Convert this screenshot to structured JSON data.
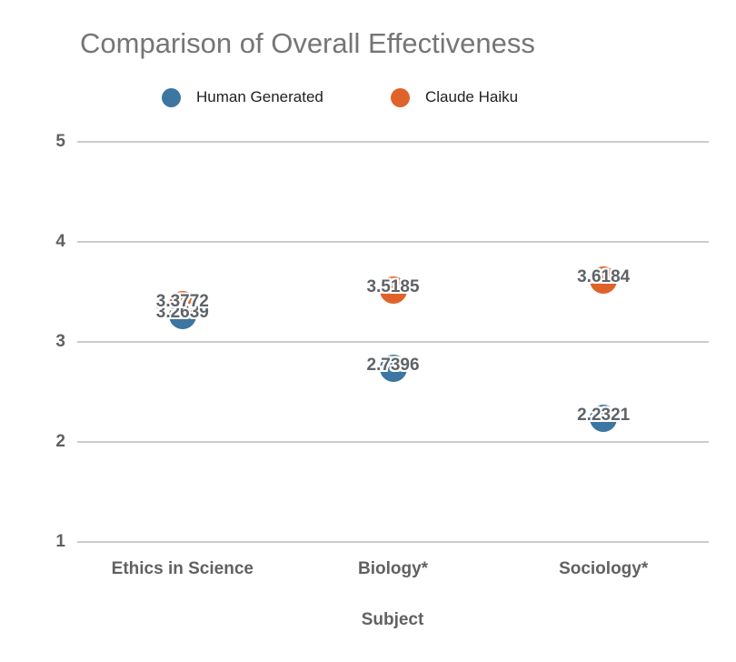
{
  "page": {
    "background": "#ffffff"
  },
  "chart_data": {
    "type": "scatter",
    "title": "Comparison of Overall Effectiveness",
    "xlabel": "Subject",
    "ylabel": "",
    "categories": [
      "Ethics in Science",
      "Biology*",
      "Sociology*"
    ],
    "series": [
      {
        "name": "Human Generated",
        "color": "#3C76A1",
        "values": [
          3.2639,
          2.7396,
          2.2321
        ]
      },
      {
        "name": "Claude Haiku",
        "color": "#E0622B",
        "values": [
          3.3772,
          3.5185,
          3.6184
        ]
      }
    ],
    "value_labels": [
      [
        "3.2639",
        "2.7396",
        "2.2321"
      ],
      [
        "3.3772",
        "3.5185",
        "3.6184"
      ]
    ],
    "ylim": [
      1,
      5
    ],
    "yticks": [
      1,
      2,
      3,
      4,
      5
    ],
    "grid": true,
    "legend_position": "top",
    "colors": {
      "title_text": "#757575",
      "axis_text": "#616161",
      "legend_text": "#212121",
      "value_label_text": "#5f6368",
      "gridline": "#cccccc",
      "background": "#ffffff"
    }
  }
}
